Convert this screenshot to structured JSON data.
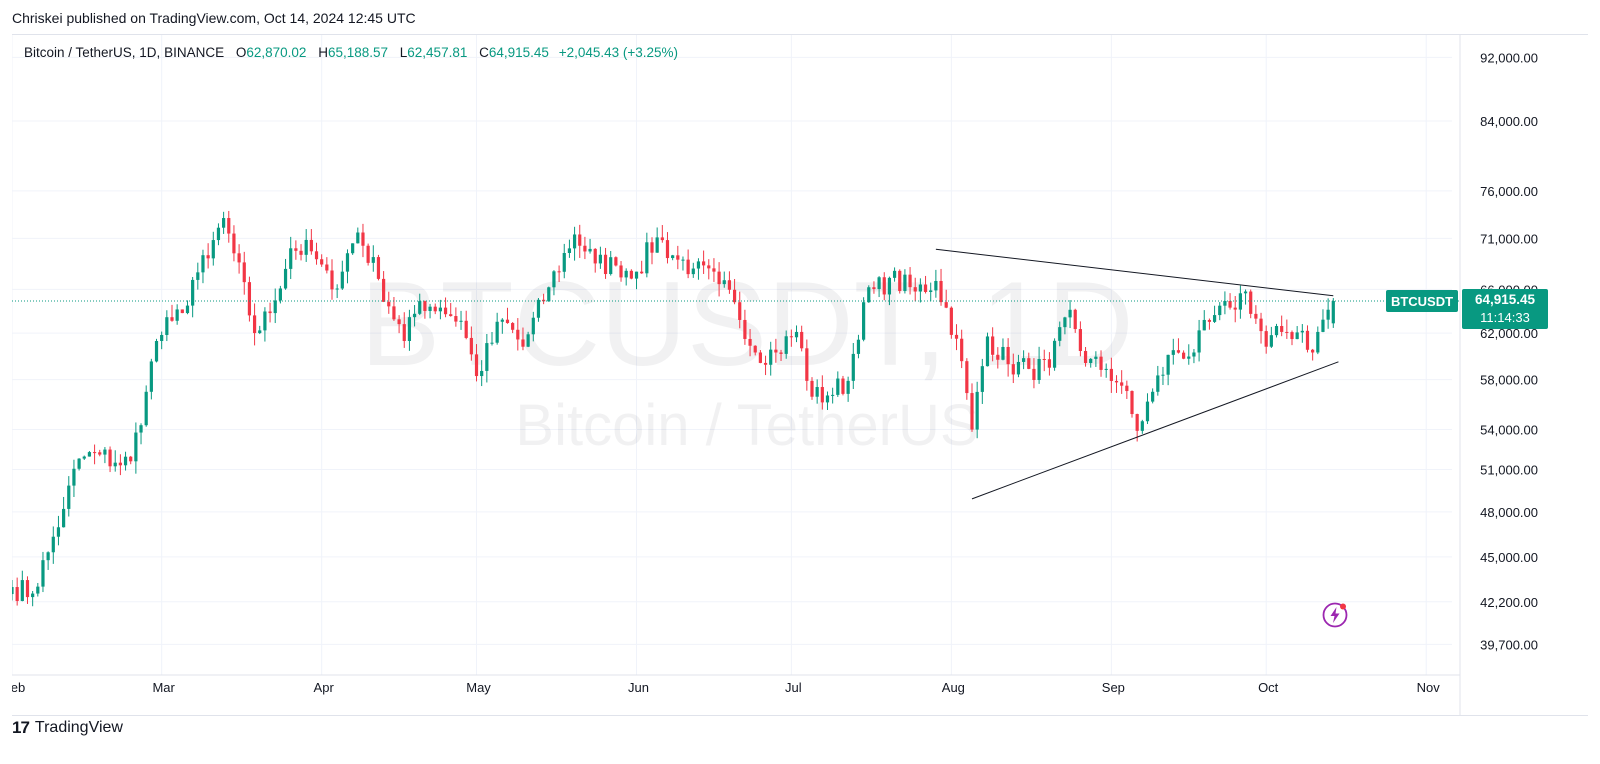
{
  "header": {
    "published": "Chriskei published on TradingView.com, Oct 14, 2024 12:45 UTC"
  },
  "legend": {
    "symbol": "Bitcoin / TetherUS, 1D, BINANCE",
    "o_label": "O",
    "o": "62,870.02",
    "h_label": "H",
    "h": "65,188.57",
    "l_label": "L",
    "l": "62,457.81",
    "c_label": "C",
    "c": "64,915.45",
    "change": "+2,045.43 (+3.25%)"
  },
  "watermark": {
    "line1": "BTCUSDT, 1D",
    "line2": "Bitcoin / TetherUS"
  },
  "price_badge": {
    "ticker": "BTCUSDT",
    "price": "64,915.45",
    "countdown": "11:14:33"
  },
  "footer": {
    "brand": "TradingView",
    "logo": "17"
  },
  "colors": {
    "up": "#089981",
    "down": "#f23645",
    "badge": "#089981"
  },
  "chart_data": {
    "type": "candlestick",
    "y_scale": "log",
    "ylim": [
      38000,
      95000
    ],
    "y_ticks": [
      92000,
      84000,
      76000,
      71000,
      66000,
      62000,
      58000,
      54000,
      51000,
      48000,
      45000,
      42200,
      39700
    ],
    "y_tick_labels": [
      "92,000.00",
      "84,000.00",
      "76,000.00",
      "71,000.00",
      "66,000.00",
      "62,000.00",
      "58,000.00",
      "54,000.00",
      "51,000.00",
      "48,000.00",
      "45,000.00",
      "42,200.00",
      "39,700.00"
    ],
    "x_range": [
      "2024-02-01",
      "2024-11-06"
    ],
    "x_ticks": [
      "2024-02-01",
      "2024-03-01",
      "2024-04-01",
      "2024-05-01",
      "2024-06-01",
      "2024-07-01",
      "2024-08-01",
      "2024-09-01",
      "2024-10-01",
      "2024-11-01"
    ],
    "x_tick_labels": [
      "Feb",
      "Mar",
      "Apr",
      "May",
      "Jun",
      "Jul",
      "Aug",
      "Sep",
      "Oct",
      "Nov"
    ],
    "last_price": 64915.45,
    "close_series": [
      [
        "2024-02-01",
        43100
      ],
      [
        "2024-02-05",
        42700
      ],
      [
        "2024-02-08",
        45300
      ],
      [
        "2024-02-11",
        48200
      ],
      [
        "2024-02-14",
        51800
      ],
      [
        "2024-02-18",
        52100
      ],
      [
        "2024-02-21",
        51500
      ],
      [
        "2024-02-24",
        51600
      ],
      [
        "2024-02-27",
        57000
      ],
      [
        "2024-02-29",
        61300
      ],
      [
        "2024-03-03",
        63100
      ],
      [
        "2024-03-05",
        63800
      ],
      [
        "2024-03-07",
        66900
      ],
      [
        "2024-03-10",
        69000
      ],
      [
        "2024-03-13",
        73100
      ],
      [
        "2024-03-15",
        69500
      ],
      [
        "2024-03-19",
        62000
      ],
      [
        "2024-03-22",
        63800
      ],
      [
        "2024-03-26",
        70000
      ],
      [
        "2024-03-30",
        69700
      ],
      [
        "2024-04-03",
        66000
      ],
      [
        "2024-04-08",
        71600
      ],
      [
        "2024-04-12",
        67000
      ],
      [
        "2024-04-17",
        61300
      ],
      [
        "2024-04-20",
        64900
      ],
      [
        "2024-04-24",
        64300
      ],
      [
        "2024-04-28",
        63100
      ],
      [
        "2024-05-01",
        58300
      ],
      [
        "2024-05-06",
        63200
      ],
      [
        "2024-05-10",
        60800
      ],
      [
        "2024-05-15",
        66200
      ],
      [
        "2024-05-20",
        71400
      ],
      [
        "2024-05-24",
        68500
      ],
      [
        "2024-05-28",
        68300
      ],
      [
        "2024-06-01",
        67700
      ],
      [
        "2024-06-05",
        71100
      ],
      [
        "2024-06-08",
        69300
      ],
      [
        "2024-06-12",
        68000
      ],
      [
        "2024-06-17",
        66500
      ],
      [
        "2024-06-20",
        64800
      ],
      [
        "2024-06-24",
        60300
      ],
      [
        "2024-06-28",
        60300
      ],
      [
        "2024-07-02",
        62100
      ],
      [
        "2024-07-05",
        56600
      ],
      [
        "2024-07-08",
        56700
      ],
      [
        "2024-07-12",
        57900
      ],
      [
        "2024-07-15",
        64800
      ],
      [
        "2024-07-20",
        67100
      ],
      [
        "2024-07-25",
        65800
      ],
      [
        "2024-07-29",
        66800
      ],
      [
        "2024-08-02",
        61500
      ],
      [
        "2024-08-05",
        54000
      ],
      [
        "2024-08-08",
        61700
      ],
      [
        "2024-08-12",
        59300
      ],
      [
        "2024-08-16",
        58900
      ],
      [
        "2024-08-20",
        59000
      ],
      [
        "2024-08-24",
        64100
      ],
      [
        "2024-08-27",
        59400
      ],
      [
        "2024-08-31",
        58900
      ],
      [
        "2024-09-03",
        57500
      ],
      [
        "2024-09-06",
        53900
      ],
      [
        "2024-09-09",
        57000
      ],
      [
        "2024-09-13",
        60500
      ],
      [
        "2024-09-17",
        60300
      ],
      [
        "2024-09-20",
        63000
      ],
      [
        "2024-09-24",
        64300
      ],
      [
        "2024-09-27",
        65800
      ],
      [
        "2024-10-01",
        60800
      ],
      [
        "2024-10-04",
        62100
      ],
      [
        "2024-10-08",
        62200
      ],
      [
        "2024-10-10",
        60300
      ],
      [
        "2024-10-12",
        63200
      ],
      [
        "2024-10-14",
        64915
      ]
    ],
    "trendlines": [
      {
        "from": [
          "2024-07-29",
          69900
        ],
        "to": [
          "2024-10-14",
          65400
        ]
      },
      {
        "from": [
          "2024-08-05",
          48900
        ],
        "to": [
          "2024-10-15",
          59500
        ]
      }
    ]
  }
}
